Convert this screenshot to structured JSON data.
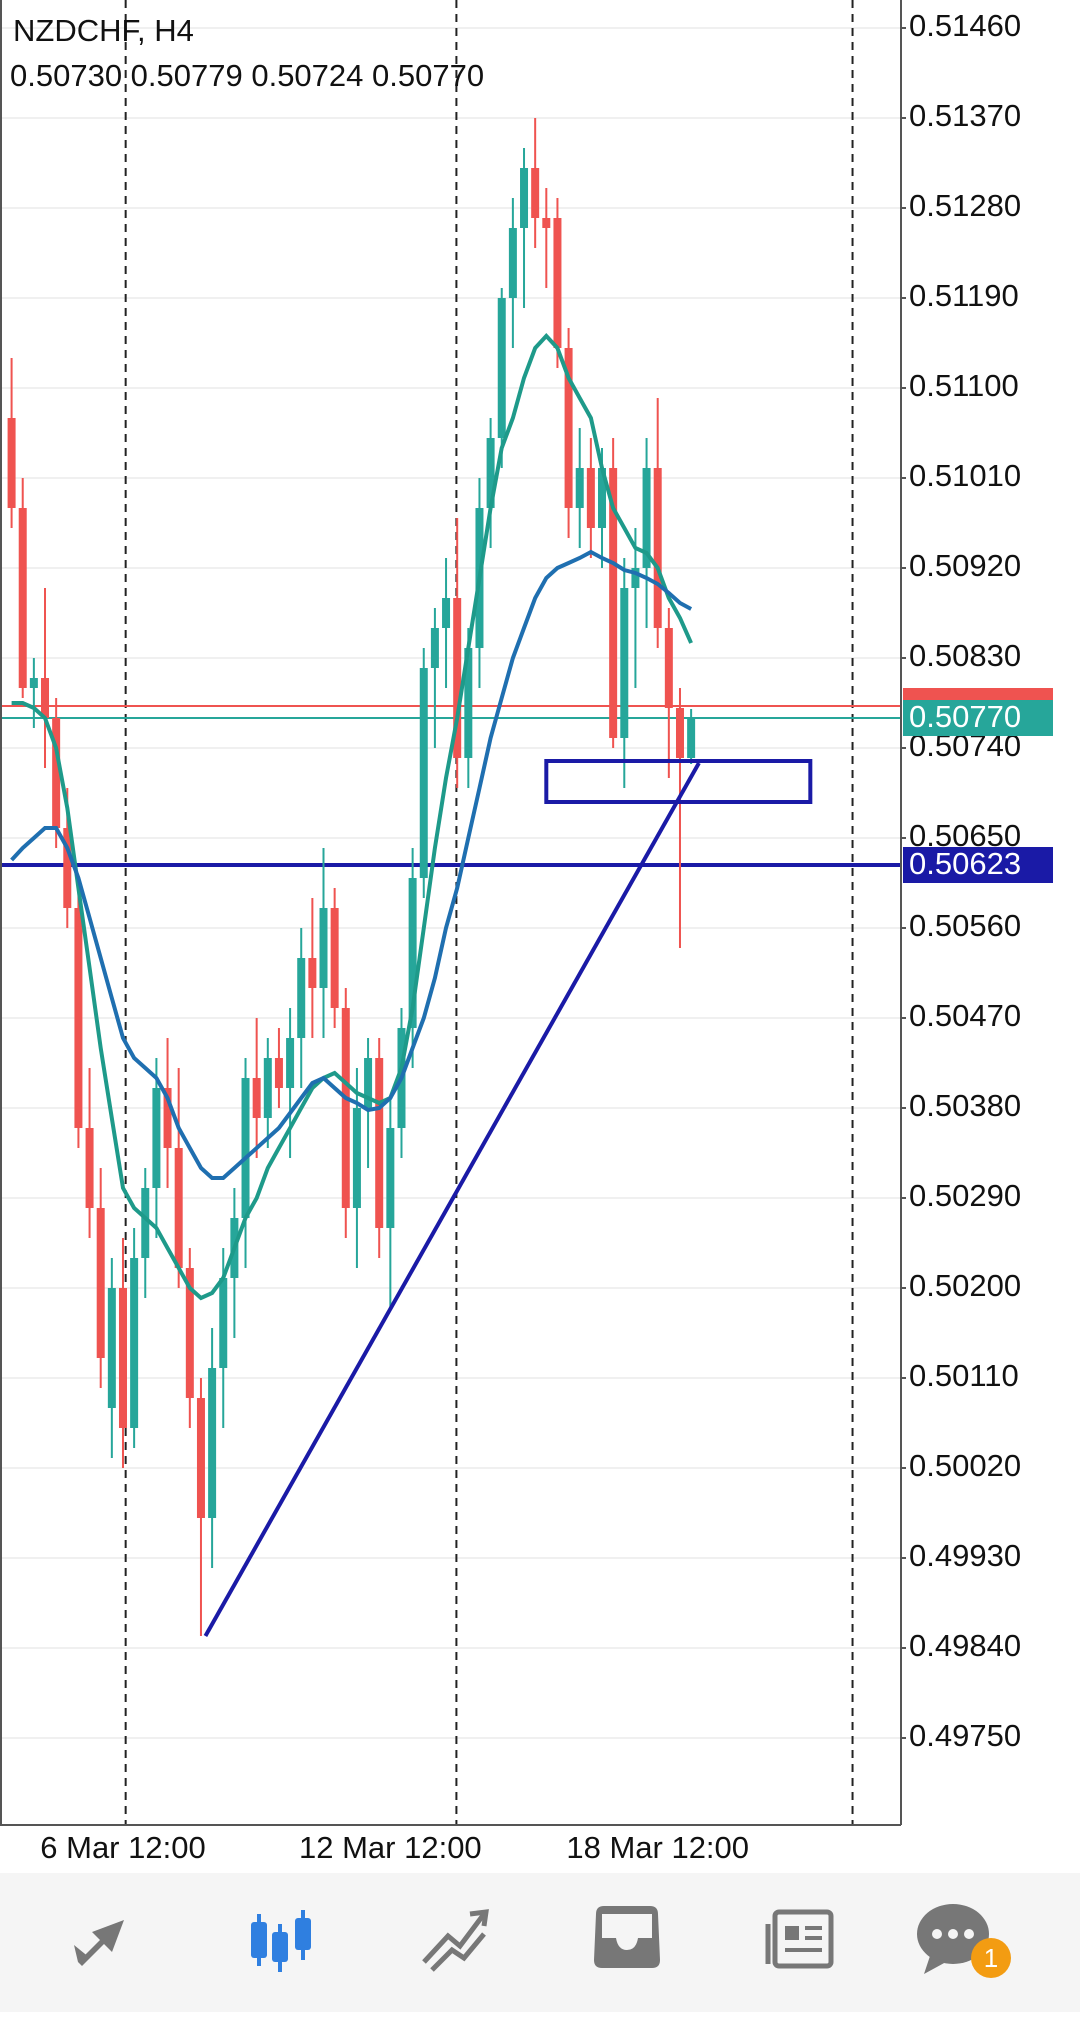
{
  "chart_data": {
    "type": "candlestick",
    "title": "NZDCHF, H4",
    "subtitle": "0.50730 0.50779 0.50724 0.50770",
    "up_color": "#26a69a",
    "down_color": "#ef5350",
    "grid": true,
    "xlim": [
      -1.04,
      79.75
    ],
    "ylim": [
      0.49664,
      0.51488
    ],
    "yticks": [
      {
        "value": 0.5146,
        "label": "0.51460"
      },
      {
        "value": 0.5137,
        "label": "0.51370"
      },
      {
        "value": 0.5128,
        "label": "0.51280"
      },
      {
        "value": 0.5119,
        "label": "0.51190"
      },
      {
        "value": 0.511,
        "label": "0.51100"
      },
      {
        "value": 0.5101,
        "label": "0.51010"
      },
      {
        "value": 0.5092,
        "label": "0.50920"
      },
      {
        "value": 0.5083,
        "label": "0.50830"
      },
      {
        "value": 0.5074,
        "label": "0.50740"
      },
      {
        "value": 0.5065,
        "label": "0.50650"
      },
      {
        "value": 0.5056,
        "label": "0.50560"
      },
      {
        "value": 0.5047,
        "label": "0.50470"
      },
      {
        "value": 0.5038,
        "label": "0.50380"
      },
      {
        "value": 0.5029,
        "label": "0.50290"
      },
      {
        "value": 0.502,
        "label": "0.50200"
      },
      {
        "value": 0.5011,
        "label": "0.50110"
      },
      {
        "value": 0.5002,
        "label": "0.50020"
      },
      {
        "value": 0.4993,
        "label": "0.49930"
      },
      {
        "value": 0.4984,
        "label": "0.49840"
      },
      {
        "value": 0.4975,
        "label": "0.49750"
      }
    ],
    "categories": [
      null,
      null,
      null,
      null,
      null,
      null,
      null,
      null,
      null,
      null,
      "6 Mar 12:00",
      null,
      null,
      null,
      null,
      null,
      null,
      null,
      null,
      null,
      null,
      null,
      null,
      null,
      null,
      null,
      null,
      null,
      null,
      null,
      null,
      null,
      null,
      null,
      "12 Mar 12:00",
      null,
      null,
      null,
      null,
      null,
      null,
      null,
      null,
      null,
      null,
      null,
      null,
      null,
      null,
      null,
      null,
      null,
      null,
      null,
      null,
      null,
      null,
      null,
      "18 Mar 12:00",
      null,
      null,
      null
    ],
    "ohlc": [
      [
        0.5107,
        0.5113,
        0.5096,
        0.5098
      ],
      [
        0.5098,
        0.5101,
        0.5079,
        0.508
      ],
      [
        0.508,
        0.5083,
        0.5076,
        0.5081
      ],
      [
        0.5081,
        0.509,
        0.5072,
        0.5077
      ],
      [
        0.5077,
        0.5079,
        0.5064,
        0.5066
      ],
      [
        0.5066,
        0.507,
        0.5056,
        0.5058
      ],
      [
        0.5058,
        0.506,
        0.5034,
        0.5036
      ],
      [
        0.5036,
        0.5042,
        0.5025,
        0.5028
      ],
      [
        0.5028,
        0.5032,
        0.501,
        0.5013
      ],
      [
        0.5008,
        0.5023,
        0.5003,
        0.502
      ],
      [
        0.502,
        0.5025,
        0.5002,
        0.5006
      ],
      [
        0.5006,
        0.5026,
        0.5004,
        0.5023
      ],
      [
        0.5023,
        0.5032,
        0.5019,
        0.503
      ],
      [
        0.503,
        0.5043,
        0.5025,
        0.504
      ],
      [
        0.504,
        0.5045,
        0.503,
        0.5034
      ],
      [
        0.5034,
        0.5042,
        0.502,
        0.5022
      ],
      [
        0.5022,
        0.5024,
        0.5006,
        0.5009
      ],
      [
        0.5009,
        0.5011,
        0.49852,
        0.4997
      ],
      [
        0.4997,
        0.5016,
        0.4992,
        0.5012
      ],
      [
        0.5012,
        0.5024,
        0.5006,
        0.5021
      ],
      [
        0.5021,
        0.503,
        0.5015,
        0.5027
      ],
      [
        0.5027,
        0.5043,
        0.5022,
        0.5041
      ],
      [
        0.5041,
        0.5047,
        0.5033,
        0.5037
      ],
      [
        0.5037,
        0.5045,
        0.5034,
        0.5043
      ],
      [
        0.5043,
        0.5046,
        0.5038,
        0.504
      ],
      [
        0.504,
        0.5048,
        0.5033,
        0.5045
      ],
      [
        0.5045,
        0.5056,
        0.504,
        0.5053
      ],
      [
        0.5053,
        0.5059,
        0.5045,
        0.505
      ],
      [
        0.505,
        0.5064,
        0.5045,
        0.5058
      ],
      [
        0.5058,
        0.506,
        0.5046,
        0.5048
      ],
      [
        0.5048,
        0.505,
        0.5025,
        0.5028
      ],
      [
        0.5028,
        0.5042,
        0.5022,
        0.5038
      ],
      [
        0.5038,
        0.5045,
        0.5032,
        0.5043
      ],
      [
        0.5043,
        0.5045,
        0.5023,
        0.5026
      ],
      [
        0.5026,
        0.5039,
        0.5018,
        0.5036
      ],
      [
        0.5036,
        0.5048,
        0.5033,
        0.5046
      ],
      [
        0.5046,
        0.5064,
        0.5042,
        0.5061
      ],
      [
        0.5061,
        0.5084,
        0.5059,
        0.5082
      ],
      [
        0.5082,
        0.5088,
        0.5074,
        0.5086
      ],
      [
        0.5086,
        0.5093,
        0.508,
        0.5089
      ],
      [
        0.5089,
        0.5097,
        0.507,
        0.5073
      ],
      [
        0.5073,
        0.5086,
        0.507,
        0.5084
      ],
      [
        0.5084,
        0.5101,
        0.508,
        0.5098
      ],
      [
        0.5098,
        0.5107,
        0.5094,
        0.5105
      ],
      [
        0.5105,
        0.512,
        0.5102,
        0.5119
      ],
      [
        0.5119,
        0.5129,
        0.5114,
        0.5126
      ],
      [
        0.5126,
        0.5134,
        0.5118,
        0.5132
      ],
      [
        0.5132,
        0.5137,
        0.5124,
        0.5127
      ],
      [
        0.5127,
        0.513,
        0.512,
        0.5126
      ],
      [
        0.5127,
        0.5129,
        0.5112,
        0.5114
      ],
      [
        0.5114,
        0.5116,
        0.5095,
        0.5098
      ],
      [
        0.5098,
        0.5106,
        0.5094,
        0.5102
      ],
      [
        0.5102,
        0.5105,
        0.5093,
        0.5096
      ],
      [
        0.5096,
        0.5104,
        0.5092,
        0.5102
      ],
      [
        0.5102,
        0.5105,
        0.5074,
        0.5075
      ],
      [
        0.5075,
        0.5093,
        0.507,
        0.509
      ],
      [
        0.509,
        0.5096,
        0.508,
        0.5092
      ],
      [
        0.5092,
        0.5105,
        0.5086,
        0.5102
      ],
      [
        0.5102,
        0.5109,
        0.5084,
        0.5086
      ],
      [
        0.5086,
        0.5088,
        0.5071,
        0.5078
      ],
      [
        0.5078,
        0.508,
        0.5054,
        0.5073
      ],
      [
        0.5073,
        0.50779,
        0.50724,
        0.5077
      ]
    ],
    "lines": [
      {
        "color": "#1e9a8a",
        "values": [
          0.50785,
          0.50785,
          0.5078,
          0.5077,
          0.5074,
          0.5068,
          0.506,
          0.5052,
          0.5044,
          0.5037,
          0.503,
          0.5028,
          0.5027,
          0.5026,
          0.5024,
          0.5022,
          0.502,
          0.5019,
          0.50195,
          0.5021,
          0.5024,
          0.5027,
          0.5029,
          0.5032,
          0.5034,
          0.5036,
          0.5038,
          0.504,
          0.5041,
          0.50415,
          0.50405,
          0.50395,
          0.5039,
          0.50385,
          0.5039,
          0.5042,
          0.5048,
          0.5056,
          0.5064,
          0.5071,
          0.5077,
          0.5084,
          0.5091,
          0.5098,
          0.5104,
          0.5107,
          0.5111,
          0.5114,
          0.51152,
          0.5114,
          0.5111,
          0.5109,
          0.5107,
          0.5102,
          0.5098,
          0.5096,
          0.5094,
          0.50935,
          0.5092,
          0.5089,
          0.5087,
          0.50845
        ]
      },
      {
        "color": "#1f6fb0",
        "values": [
          0.50628,
          0.5064,
          0.5065,
          0.5066,
          0.5066,
          0.5064,
          0.5061,
          0.5057,
          0.5053,
          0.5049,
          0.5045,
          0.5043,
          0.5042,
          0.5041,
          0.5039,
          0.5036,
          0.5034,
          0.5032,
          0.5031,
          0.5031,
          0.5032,
          0.5033,
          0.5034,
          0.5035,
          0.5036,
          0.50375,
          0.5039,
          0.50405,
          0.5041,
          0.504,
          0.5039,
          0.50385,
          0.50378,
          0.5038,
          0.5039,
          0.5041,
          0.5044,
          0.5047,
          0.5051,
          0.5056,
          0.506,
          0.5065,
          0.507,
          0.5075,
          0.5079,
          0.5083,
          0.5086,
          0.5089,
          0.5091,
          0.5092,
          0.50925,
          0.5093,
          0.50936,
          0.5093,
          0.50925,
          0.50918,
          0.50915,
          0.5091,
          0.50904,
          0.50895,
          0.50885,
          0.50879
        ]
      }
    ],
    "hlines": [
      {
        "value": 0.50782,
        "color": "#ef5350"
      },
      {
        "value": 0.5077,
        "label": "0.50770",
        "color": "#26a69a"
      },
      {
        "value": 0.50623,
        "label": "0.50623",
        "color": "#1a1aa6"
      }
    ],
    "separators": [
      10.24,
      39.93,
      75.49
    ],
    "trendline": {
      "x": [
        17.4,
        61.7
      ],
      "y": [
        0.49852,
        0.50725
      ],
      "color": "#1a1aa6"
    },
    "rectangle": {
      "x": [
        48,
        71.7
      ],
      "y": [
        0.50686,
        0.50727
      ],
      "color": "#1a1aa6"
    }
  },
  "nav": {
    "badge": "1"
  }
}
